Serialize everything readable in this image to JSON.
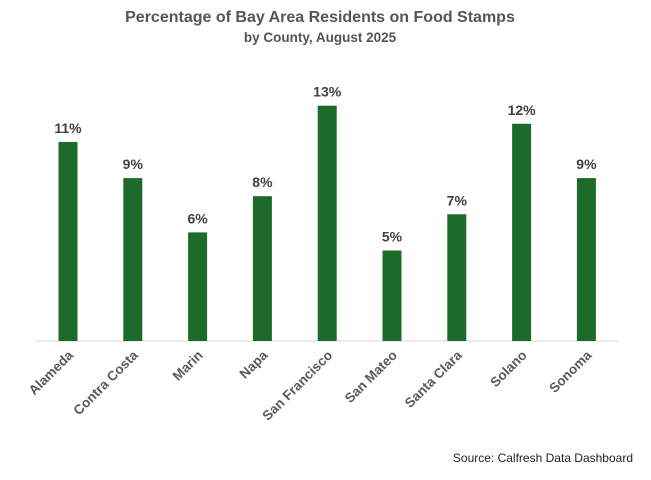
{
  "chart_data": {
    "type": "bar",
    "title": "Percentage of Bay Area Residents on Food Stamps",
    "subtitle": "by County, August 2025",
    "categories": [
      "Alameda",
      "Contra Costa",
      "Marin",
      "Napa",
      "San Francisco",
      "San Mateo",
      "Santa Clara",
      "Solano",
      "Sonoma"
    ],
    "values": [
      11,
      9,
      6,
      8,
      13,
      5,
      7,
      12,
      9
    ],
    "value_labels": [
      "11%",
      "9%",
      "6%",
      "8%",
      "13%",
      "5%",
      "7%",
      "12%",
      "9%"
    ],
    "xlabel": "",
    "ylabel": "",
    "ylim": [
      0,
      15
    ],
    "grid": false,
    "legend": "none",
    "source": "Source: Calfresh Data Dashboard",
    "bar_color": "#1c6b2b",
    "axis_color": "#d9d9d9"
  }
}
